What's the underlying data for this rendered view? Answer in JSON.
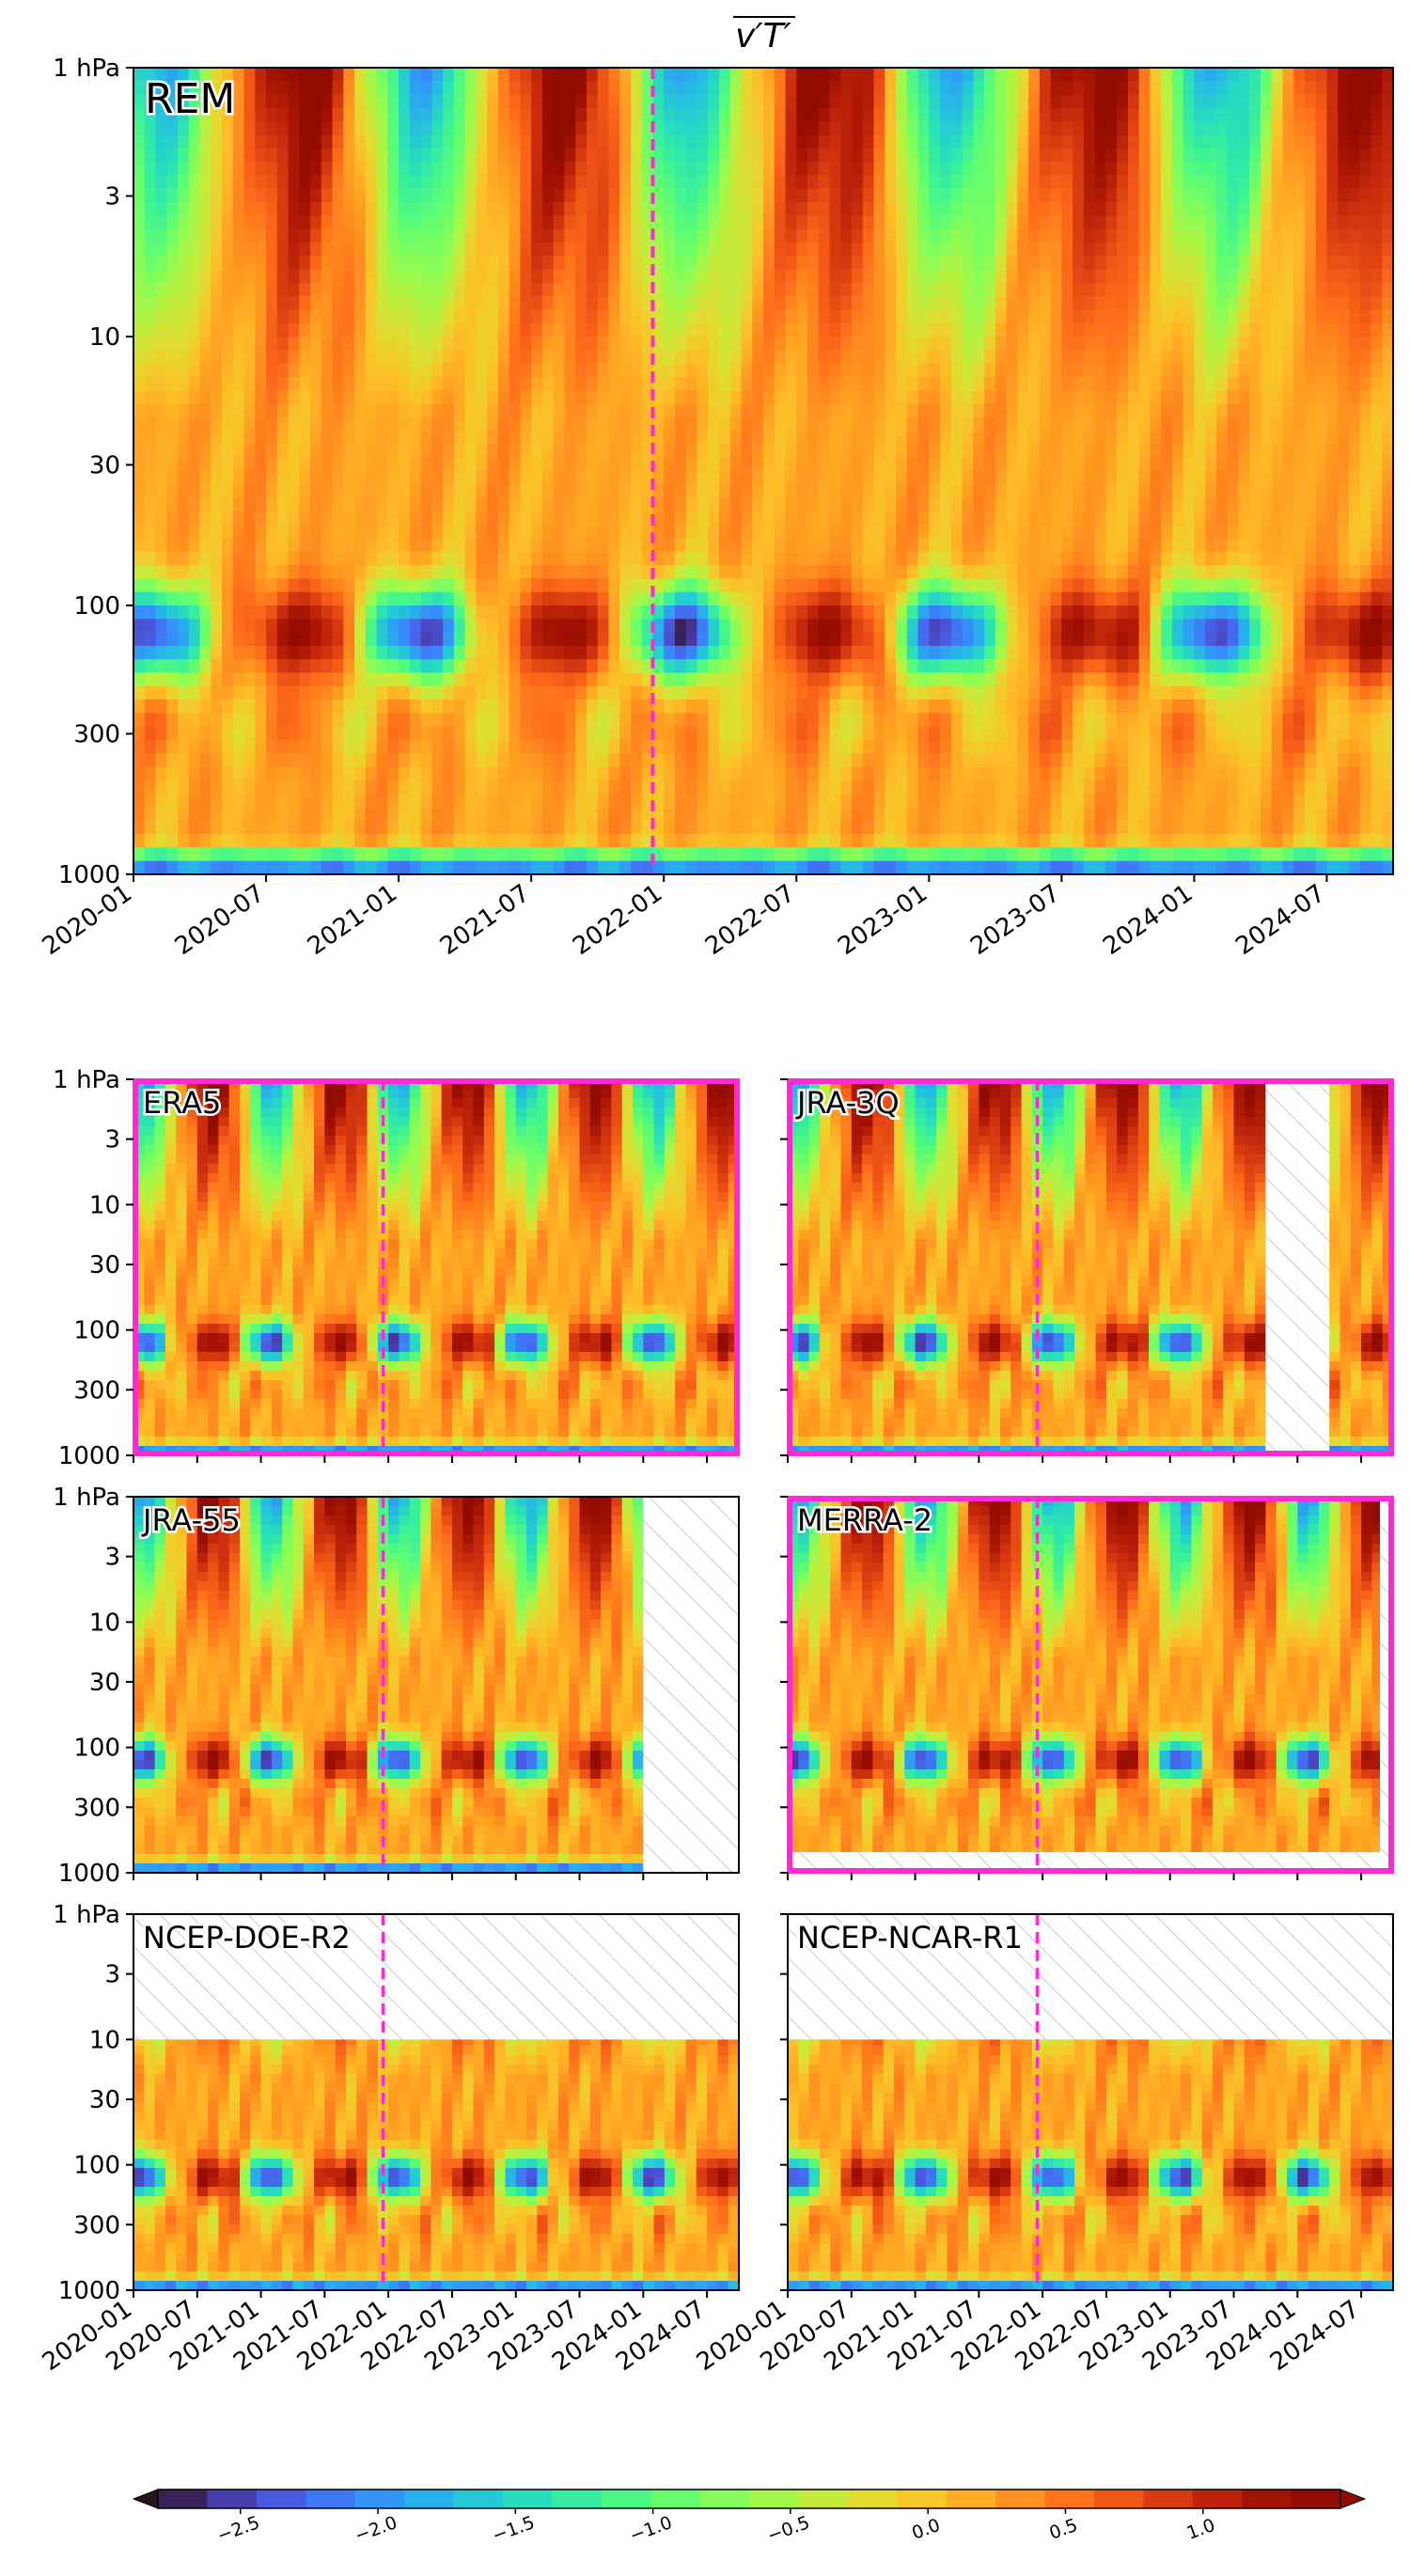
{
  "figure": {
    "title": "v′T′ (overlined)",
    "title_parts": {
      "v": "v",
      "prime": "′",
      "T": "T"
    }
  },
  "colors": {
    "event_line": "#ff2ad4",
    "highlight_frame": "#ff2ad4",
    "hatch": "#c8c8c8",
    "colormap": "turbo"
  },
  "chart_data": [
    {
      "type": "heatmap",
      "panel": "top",
      "label": "REM",
      "ylabel": "",
      "yscale": "log",
      "y_inverted": true,
      "y_ticks": [
        1,
        3,
        10,
        30,
        100,
        300,
        1000
      ],
      "y_tick_labels": [
        "1 hPa",
        "3",
        "10",
        "30",
        "100",
        "300",
        "1000"
      ],
      "x_tick_labels": [
        "2020-01",
        "2020-07",
        "2021-01",
        "2021-07",
        "2022-01",
        "2022-07",
        "2023-01",
        "2023-07",
        "2024-01",
        "2024-07"
      ],
      "xlim": [
        "2020-01",
        "2024-10"
      ],
      "ylim": [
        1000,
        1
      ],
      "event_date": "2021-12",
      "missing": []
    },
    {
      "type": "heatmap",
      "panel": "ERA5",
      "label": "ERA5",
      "highlighted": true,
      "y_tick_labels": [
        "1 hPa",
        "3",
        "10",
        "30",
        "100",
        "300",
        "1000"
      ],
      "event_date": "2021-12",
      "missing": []
    },
    {
      "type": "heatmap",
      "panel": "JRA-3Q",
      "label": "JRA-3Q",
      "highlighted": true,
      "event_date": "2021-12",
      "missing": [
        {
          "from": "2023-10",
          "to": "2023-12",
          "pressure": "all"
        },
        {
          "from": "2024-01",
          "to": "2024-03",
          "pressure": "all"
        }
      ]
    },
    {
      "type": "heatmap",
      "panel": "JRA-55",
      "label": "JRA-55",
      "highlighted": false,
      "y_tick_labels": [
        "1 hPa",
        "3",
        "10",
        "30",
        "100",
        "300",
        "1000"
      ],
      "event_date": "2021-12",
      "missing": [
        {
          "from": "2024-01",
          "to": "2024-10",
          "pressure": "all"
        }
      ]
    },
    {
      "type": "heatmap",
      "panel": "MERRA-2",
      "label": "MERRA-2",
      "highlighted": true,
      "event_date": "2021-12",
      "missing": [
        {
          "from": "2020-01",
          "to": "2024-10",
          "pressure": "near 1000 hPa"
        }
      ]
    },
    {
      "type": "heatmap",
      "panel": "NCEP-DOE-R2",
      "label": "NCEP-DOE-R2",
      "highlighted": false,
      "y_tick_labels": [
        "1 hPa",
        "3",
        "10",
        "30",
        "100",
        "300",
        "1000"
      ],
      "x_tick_labels": [
        "2020-01",
        "2020-07",
        "2021-01",
        "2021-07",
        "2022-01",
        "2022-07",
        "2023-01",
        "2023-07",
        "2024-01",
        "2024-07"
      ],
      "event_date": "2021-12",
      "missing": [
        {
          "from": "2020-01",
          "to": "2024-10",
          "pressure": "1–10 hPa"
        }
      ]
    },
    {
      "type": "heatmap",
      "panel": "NCEP-NCAR-R1",
      "label": "NCEP-NCAR-R1",
      "highlighted": false,
      "x_tick_labels": [
        "2020-01",
        "2020-07",
        "2021-01",
        "2021-07",
        "2022-01",
        "2022-07",
        "2023-01",
        "2023-07",
        "2024-01",
        "2024-07"
      ],
      "event_date": "2021-12",
      "missing": [
        {
          "from": "2020-01",
          "to": "2024-10",
          "pressure": "1–10 hPa"
        }
      ]
    },
    {
      "type": "colorbar",
      "orientation": "horizontal",
      "tick_values": [
        -2.5,
        -2.0,
        -1.5,
        -1.0,
        -0.5,
        0.0,
        0.5,
        1.0
      ],
      "tick_labels": [
        "−2.5",
        "−2.0",
        "−1.5",
        "−1.0",
        "−0.5",
        "0.0",
        "0.5",
        "1.0"
      ],
      "range": [
        -2.8,
        1.5
      ],
      "extend": "both"
    }
  ]
}
